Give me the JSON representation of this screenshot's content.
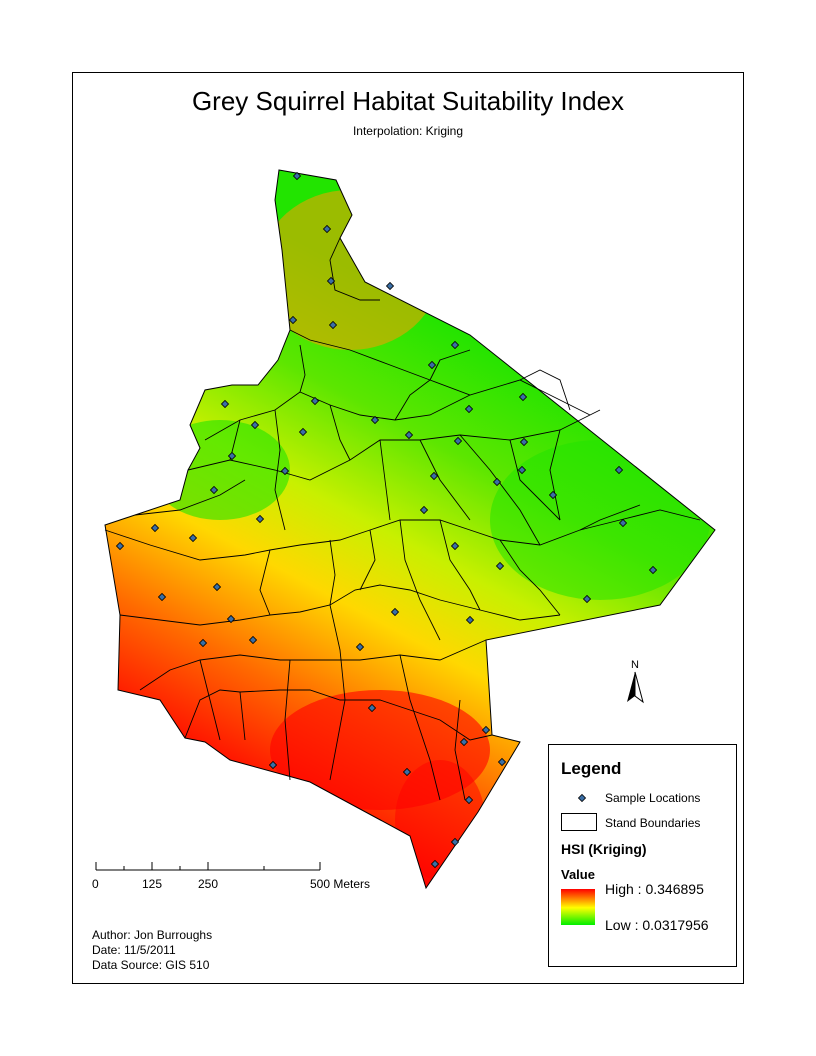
{
  "title": "Grey Squirrel Habitat Suitability Index",
  "subtitle": "Interpolation:  Kriging",
  "legend": {
    "title": "Legend",
    "sample_locations": "Sample Locations",
    "stand_boundaries": "Stand Boundaries",
    "hsi_title": "HSI (Kriging)",
    "value_label": "Value",
    "high": "High : 0.346895",
    "low": "Low : 0.0317956",
    "ramp_colors": [
      "#ff0000",
      "#ffff00",
      "#00ee00"
    ]
  },
  "north_arrow": {
    "label": "N"
  },
  "scale_bar": {
    "labels": [
      "0",
      "125",
      "250",
      "500  Meters"
    ]
  },
  "credits": {
    "author": "Author:  Jon Burroughs",
    "date": "Date:  11/5/2011",
    "source": "Data Source:  GIS 510"
  },
  "colors": {
    "high": "#ff0000",
    "mid": "#ffff00",
    "low": "#00ee00",
    "point_fill": "#3a6ea5",
    "boundary": "#000000"
  }
}
